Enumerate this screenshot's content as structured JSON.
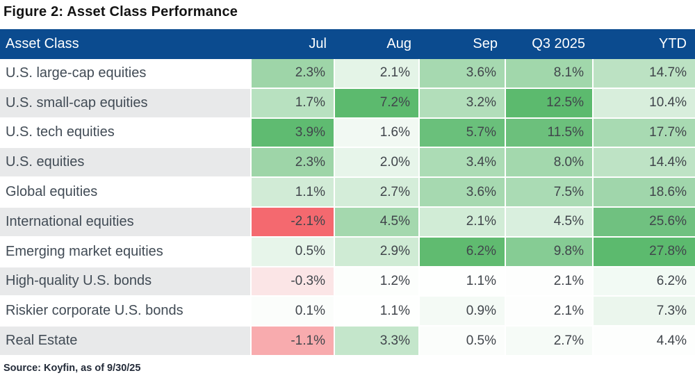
{
  "title": "Figure 2: Asset Class Performance",
  "source": "Source: Koyfin, as of 9/30/25",
  "colors": {
    "header_bg": "#0B4B8F",
    "header_text": "#FFFFFF",
    "row_stripe_gray": "#E8E9EA",
    "positive_max_green": "#5CBA6E",
    "negative_max_red": "#F4696F",
    "grid_line": "#FFFFFF"
  },
  "table": {
    "header": [
      "Asset Class",
      "Jul",
      "Aug",
      "Sep",
      "Q3 2025",
      "YTD"
    ],
    "rows": [
      {
        "label": "U.S. large-cap equities",
        "cells": [
          {
            "v": "2.3%",
            "bg": "#9ED5A8"
          },
          {
            "v": "2.1%",
            "bg": "#E4F4E7"
          },
          {
            "v": "3.6%",
            "bg": "#A6D9B0"
          },
          {
            "v": "8.1%",
            "bg": "#A1D7AB"
          },
          {
            "v": "14.7%",
            "bg": "#BCE2C3"
          }
        ]
      },
      {
        "label": "U.S. small-cap equities",
        "cells": [
          {
            "v": "1.7%",
            "bg": "#B8E1C0"
          },
          {
            "v": "7.2%",
            "bg": "#5CBA6E"
          },
          {
            "v": "3.2%",
            "bg": "#B2DEBA"
          },
          {
            "v": "12.5%",
            "bg": "#5CBA6E"
          },
          {
            "v": "10.4%",
            "bg": "#D8EEDC"
          }
        ]
      },
      {
        "label": "U.S. tech equities",
        "cells": [
          {
            "v": "3.9%",
            "bg": "#5FBB71"
          },
          {
            "v": "1.6%",
            "bg": "#F2F9F3"
          },
          {
            "v": "5.7%",
            "bg": "#6AC07B"
          },
          {
            "v": "11.5%",
            "bg": "#6CC07C"
          },
          {
            "v": "17.7%",
            "bg": "#A8DAB2"
          }
        ]
      },
      {
        "label": "U.S. equities",
        "cells": [
          {
            "v": "2.3%",
            "bg": "#9ED5A8"
          },
          {
            "v": "2.0%",
            "bg": "#E7F5EA"
          },
          {
            "v": "3.4%",
            "bg": "#ACDCB5"
          },
          {
            "v": "8.0%",
            "bg": "#A3D8AD"
          },
          {
            "v": "14.4%",
            "bg": "#BEE3C5"
          }
        ]
      },
      {
        "label": "Global equities",
        "cells": [
          {
            "v": "1.1%",
            "bg": "#D1EBD6"
          },
          {
            "v": "2.7%",
            "bg": "#D4EDD9"
          },
          {
            "v": "3.6%",
            "bg": "#A6D9B0"
          },
          {
            "v": "7.5%",
            "bg": "#AADBB4"
          },
          {
            "v": "18.6%",
            "bg": "#A0D6AB"
          }
        ]
      },
      {
        "label": "International equities",
        "cells": [
          {
            "v": "-2.1%",
            "bg": "#F4696F"
          },
          {
            "v": "4.5%",
            "bg": "#A4D8AE"
          },
          {
            "v": "2.1%",
            "bg": "#D1ECD6"
          },
          {
            "v": "4.5%",
            "bg": "#D9EFDE"
          },
          {
            "v": "25.6%",
            "bg": "#70C180"
          }
        ]
      },
      {
        "label": "Emerging market equities",
        "cells": [
          {
            "v": "0.5%",
            "bg": "#E7F5EA"
          },
          {
            "v": "2.9%",
            "bg": "#CFEBD4"
          },
          {
            "v": "6.2%",
            "bg": "#60BB70"
          },
          {
            "v": "9.8%",
            "bg": "#86CC94"
          },
          {
            "v": "27.8%",
            "bg": "#5CBA6E"
          }
        ]
      },
      {
        "label": "High-quality U.S. bonds",
        "cells": [
          {
            "v": "-0.3%",
            "bg": "#FBE5E6"
          },
          {
            "v": "1.2%",
            "bg": "#FCFEFC"
          },
          {
            "v": "1.1%",
            "bg": "#FEFFFE"
          },
          {
            "v": "2.1%",
            "bg": "#FDFEFD"
          },
          {
            "v": "6.2%",
            "bg": "#F2FAF4"
          }
        ]
      },
      {
        "label": "Riskier corporate U.S. bonds",
        "cells": [
          {
            "v": "0.1%",
            "bg": "#FBFDFB"
          },
          {
            "v": "1.1%",
            "bg": "#FEFFFE"
          },
          {
            "v": "0.9%",
            "bg": "#F4FAF5"
          },
          {
            "v": "2.1%",
            "bg": "#FDFEFD"
          },
          {
            "v": "7.3%",
            "bg": "#EBF6ED"
          }
        ]
      },
      {
        "label": "Real Estate",
        "cells": [
          {
            "v": "-1.1%",
            "bg": "#F8ABAE"
          },
          {
            "v": "3.3%",
            "bg": "#C4E6CB"
          },
          {
            "v": "0.5%",
            "bg": "#FBFDFB"
          },
          {
            "v": "2.7%",
            "bg": "#F6FBF7"
          },
          {
            "v": "4.4%",
            "bg": "#FDFEFD"
          }
        ]
      }
    ]
  },
  "chart_data": {
    "type": "heatmap",
    "title": "Figure 2: Asset Class Performance",
    "columns": [
      "Jul",
      "Aug",
      "Sep",
      "Q3 2025",
      "YTD"
    ],
    "rows": [
      "U.S. large-cap equities",
      "U.S. small-cap equities",
      "U.S. tech equities",
      "U.S. equities",
      "Global equities",
      "International equities",
      "Emerging market equities",
      "High-quality U.S. bonds",
      "Riskier corporate U.S. bonds",
      "Real Estate"
    ],
    "values": [
      [
        2.3,
        2.1,
        3.6,
        8.1,
        14.7
      ],
      [
        1.7,
        7.2,
        3.2,
        12.5,
        10.4
      ],
      [
        3.9,
        1.6,
        5.7,
        11.5,
        17.7
      ],
      [
        2.3,
        2.0,
        3.4,
        8.0,
        14.4
      ],
      [
        1.1,
        2.7,
        3.6,
        7.5,
        18.6
      ],
      [
        -2.1,
        4.5,
        2.1,
        4.5,
        25.6
      ],
      [
        0.5,
        2.9,
        6.2,
        9.8,
        27.8
      ],
      [
        -0.3,
        1.2,
        1.1,
        2.1,
        6.2
      ],
      [
        0.1,
        1.1,
        0.9,
        2.1,
        7.3
      ],
      [
        -1.1,
        3.3,
        0.5,
        2.7,
        4.4
      ]
    ],
    "units": "%",
    "source": "Source: Koyfin, as of 9/30/25",
    "layout_hints": {
      "color_scale": "per-column, white at low/zero, green #5CBA6E at column max, red #F4696F at column min (negatives)",
      "row_label_stripes": "alternating white / light gray",
      "grid": "thin white separators between cells"
    }
  }
}
